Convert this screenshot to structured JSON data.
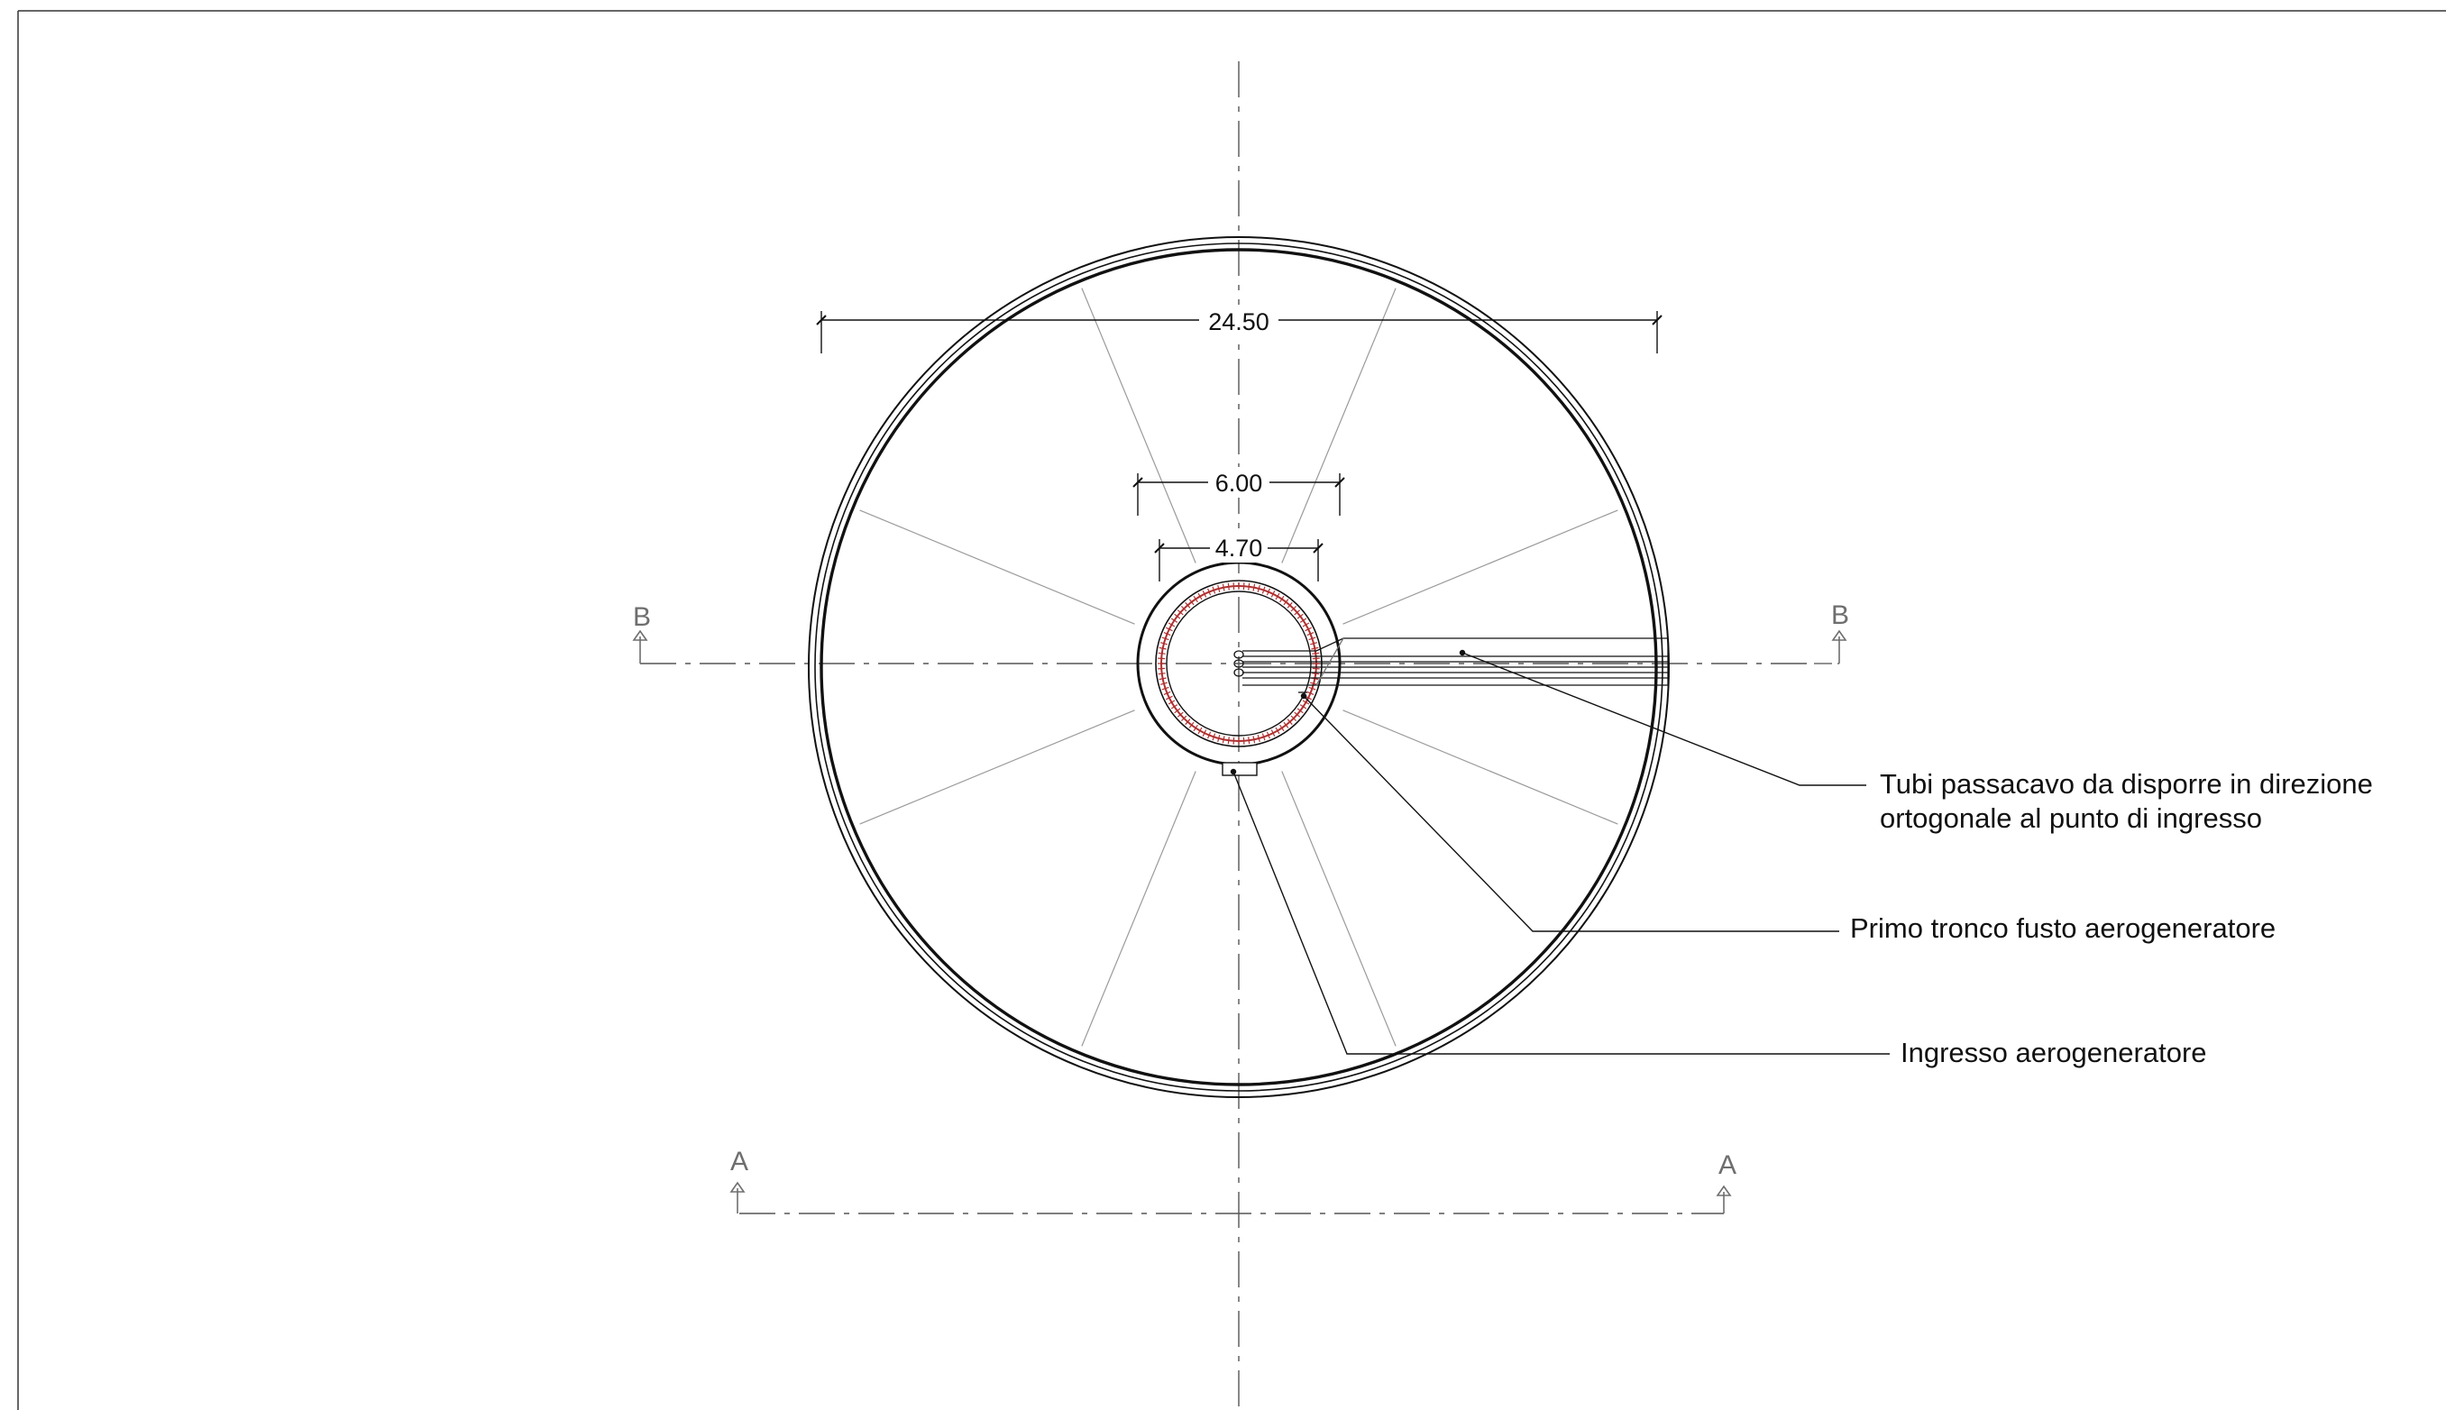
{
  "drawing": {
    "line_color": "#111111",
    "reinforcement_color": "#b03030",
    "section_mark_color": "#6e6e6e",
    "dimensions": {
      "foundation_diameter": "24.50",
      "pedestal_diameter": "6.00",
      "tower_diameter": "4.70"
    },
    "section_labels": {
      "b_left": "B",
      "b_right": "B",
      "a_left": "A",
      "a_right": "A"
    },
    "notes": {
      "cable_ducts_line1": "Tubi passacavo da disporre in direzione",
      "cable_ducts_line2": "ortogonale al punto di ingresso",
      "tower_section": "Primo tronco fusto aerogeneratore",
      "tower_entrance": "Ingresso aerogeneratore"
    }
  }
}
